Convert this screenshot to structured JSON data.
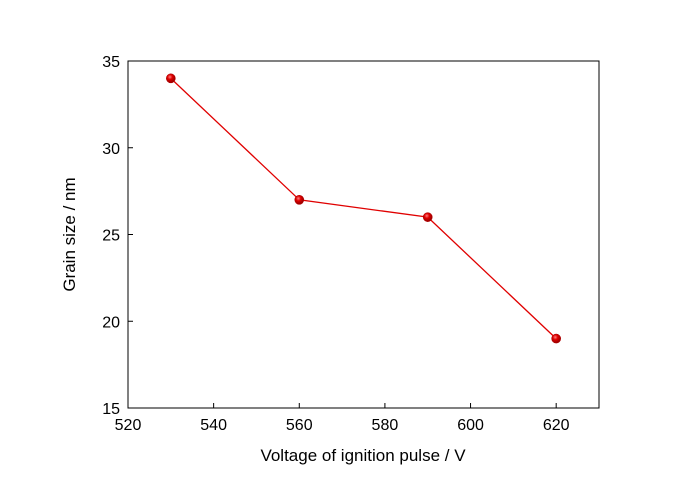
{
  "chart_data": {
    "type": "line",
    "title": "",
    "xlabel": "Voltage of ignition pulse / V",
    "ylabel": "Grain size / nm",
    "xlim": [
      520,
      630
    ],
    "ylim": [
      15,
      35
    ],
    "xticks": [
      520,
      540,
      560,
      580,
      600,
      620
    ],
    "yticks": [
      15,
      20,
      25,
      30,
      35
    ],
    "grid": false,
    "legend": "none",
    "series": [
      {
        "color": "#e00000",
        "x": [
          530,
          560,
          590,
          620
        ],
        "y": [
          34,
          27,
          26,
          19
        ]
      }
    ]
  }
}
